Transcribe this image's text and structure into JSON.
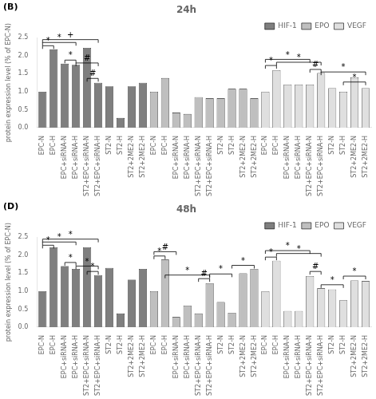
{
  "chart_data": [
    {
      "type": "bar",
      "title": "24h",
      "panel_label": "(B)",
      "y_label": "protein expression level (% of EPC-N)",
      "categories": [
        "EPC-N",
        "EPC-H",
        "EPC+siRNA-N",
        "EPC+siRNA-H",
        "ST2+EPC+siRNA-N",
        "ST2+EPC+siRNA-H",
        "ST2-N",
        "ST2-H",
        "ST2+2ME2-N",
        "ST2+2ME2-H",
        "EPC-N",
        "EPC-H",
        "EPC+siRNA-N",
        "EPC+siRNA-H",
        "ST2+EPC+siRNA-N",
        "ST2+EPC+siRNA-H",
        "ST2-N",
        "ST2-H",
        "ST2+2ME2-N",
        "ST2+2ME2-H",
        "EPC-N",
        "EPC-H",
        "EPC+siRNA-N",
        "EPC+siRNA-H",
        "ST2+EPC+siRNA-N",
        "ST2+EPC+siRNA-H",
        "ST2-N",
        "ST2-H",
        "ST2+2ME2-N",
        "ST2+2ME2-H"
      ],
      "series": [
        {
          "name": "HIF-1",
          "color": "#7f7f7f",
          "values": [
            1.0,
            2.18,
            1.78,
            1.75,
            2.22,
            1.25,
            1.15,
            0.27,
            1.15,
            1.25,
            null,
            null,
            null,
            null,
            null,
            null,
            null,
            null,
            null,
            null,
            null,
            null,
            null,
            null,
            null,
            null,
            null,
            null,
            null,
            null
          ]
        },
        {
          "name": "EPO",
          "color": "#bfbfbf",
          "values": [
            null,
            null,
            null,
            null,
            null,
            null,
            null,
            null,
            null,
            null,
            1.0,
            1.38,
            0.42,
            0.38,
            0.85,
            0.82,
            0.82,
            1.08,
            1.08,
            0.82,
            null,
            null,
            null,
            null,
            null,
            null,
            null,
            null,
            null,
            null
          ]
        },
        {
          "name": "VEGF",
          "color": "#dfdfdf",
          "values": [
            null,
            null,
            null,
            null,
            null,
            null,
            null,
            null,
            null,
            null,
            null,
            null,
            null,
            null,
            null,
            null,
            null,
            null,
            null,
            null,
            1.0,
            1.6,
            1.2,
            1.2,
            1.2,
            1.52,
            1.1,
            1.0,
            1.4,
            1.1
          ]
        }
      ],
      "ylim": [
        0.0,
        2.5
      ],
      "yticks": [
        {
          "value": 0.0,
          "label": "0.0"
        },
        0.5,
        {
          "value": 1.0,
          "label": "1.0"
        },
        1.5,
        {
          "value": 2.0,
          "label": "2.0"
        },
        2.5
      ],
      "grid": false,
      "legend": "upper right",
      "annotations": [
        {
          "series": "HIF-1",
          "from": "EPC-N",
          "to": "EPC-H",
          "y": 2.28,
          "text": "*"
        },
        {
          "series": "HIF-1",
          "from": "EPC-N",
          "to": "EPC+siRNA-H",
          "y": 2.37,
          "text": "*"
        },
        {
          "series": "HIF-1",
          "from": "EPC-N",
          "to": "ST2+EPC+siRNA-H",
          "y": 2.45,
          "text": "+"
        },
        {
          "series": "HIF-1",
          "from": "EPC+siRNA-N",
          "to": "EPC+siRNA-H",
          "y": 1.88,
          "text": "*"
        },
        {
          "series": "HIF-1",
          "from": "EPC+siRNA-H",
          "to": "ST2+EPC+siRNA-H",
          "y": 1.8,
          "text": "#"
        },
        {
          "series": "HIF-1",
          "from": "ST2+EPC+siRNA-N",
          "to": "ST2+EPC+siRNA-H",
          "y": 1.37,
          "text": "#"
        },
        {
          "series": "VEGF",
          "from": "EPC-N",
          "to": "EPC-H",
          "y": 1.73,
          "text": "*"
        },
        {
          "series": "VEGF",
          "from": "EPC-H",
          "to": "ST2+EPC+siRNA-H",
          "y": 1.82,
          "text": "*"
        },
        {
          "series": "VEGF",
          "from": "EPC-N",
          "to": "ST2+EPC+siRNA-N",
          "y": 1.9,
          "text": "*"
        },
        {
          "series": "VEGF",
          "from": "ST2+EPC+siRNA-N",
          "to": "ST2+EPC+siRNA-H",
          "y": 1.62,
          "text": "#"
        },
        {
          "series": "VEGF",
          "from": "ST2+EPC+siRNA-H",
          "to": "ST2+2ME2-H",
          "y": 1.55,
          "text": "*"
        },
        {
          "series": "VEGF",
          "from": "ST2-H",
          "to": "ST2+2ME2-H",
          "y": 1.27,
          "text": "*"
        }
      ]
    },
    {
      "type": "bar",
      "title": "48h",
      "panel_label": "(D)",
      "y_label": "protein expression level (% of EPC-N)",
      "categories": [
        "EPC-N",
        "EPC-H",
        "EPC+siRNA-N",
        "EPC+siRNA-H",
        "ST2+EPC+siRNA-N",
        "ST2+EPC+siRNA-H",
        "ST2-N",
        "ST2-H",
        "ST2+2ME2-N",
        "ST2+2ME2-H",
        "EPC-N",
        "EPC-H",
        "EPC+siRNA-N",
        "EPC+siRNA-H",
        "ST2+EPC+siRNA-N",
        "ST2+EPC+siRNA-H",
        "ST2-N",
        "ST2-H",
        "ST2+2ME2-N",
        "ST2+2ME2-H",
        "EPC-N",
        "EPC-H",
        "EPC+siRNA-N",
        "EPC+siRNA-H",
        "ST2+EPC+siRNA-N",
        "ST2+EPC+siRNA-H",
        "ST2-N",
        "ST2-H",
        "ST2+2ME2-N",
        "ST2+2ME2-H"
      ],
      "series": [
        {
          "name": "HIF-1",
          "color": "#7f7f7f",
          "values": [
            1.0,
            2.22,
            1.7,
            1.62,
            2.22,
            1.45,
            1.65,
            0.38,
            1.32,
            1.62,
            null,
            null,
            null,
            null,
            null,
            null,
            null,
            null,
            null,
            null,
            null,
            null,
            null,
            null,
            null,
            null,
            null,
            null,
            null,
            null
          ]
        },
        {
          "name": "EPO",
          "color": "#bfbfbf",
          "values": [
            null,
            null,
            null,
            null,
            null,
            null,
            null,
            null,
            null,
            null,
            1.0,
            1.88,
            0.28,
            0.6,
            0.38,
            1.22,
            0.7,
            0.4,
            1.5,
            1.62,
            null,
            null,
            null,
            null,
            null,
            null,
            null,
            null,
            null,
            null
          ]
        },
        {
          "name": "VEGF",
          "color": "#dfdfdf",
          "values": [
            null,
            null,
            null,
            null,
            null,
            null,
            null,
            null,
            null,
            null,
            null,
            null,
            null,
            null,
            null,
            null,
            null,
            null,
            null,
            null,
            1.0,
            1.85,
            0.45,
            0.45,
            1.42,
            1.08,
            1.05,
            0.75,
            1.3,
            1.28
          ]
        }
      ],
      "ylim": [
        0.0,
        2.5
      ],
      "yticks": [
        {
          "value": 0.0,
          "label": "0.0"
        },
        0.5,
        {
          "value": 1.0,
          "label": "1.0"
        },
        1.5,
        {
          "value": 2.0,
          "label": "2.0"
        },
        2.5
      ],
      "grid": false,
      "legend": "upper right",
      "annotations": [
        {
          "series": "HIF-1",
          "from": "EPC-N",
          "to": "EPC-H",
          "y": 2.28,
          "text": "*"
        },
        {
          "series": "HIF-1",
          "from": "EPC-N",
          "to": "EPC+siRNA-H",
          "y": 2.37,
          "text": "*"
        },
        {
          "series": "HIF-1",
          "from": "EPC-N",
          "to": "ST2+EPC+siRNA-H",
          "y": 2.45,
          "text": "*"
        },
        {
          "series": "HIF-1",
          "from": "EPC+siRNA-N",
          "to": "EPC+siRNA-H",
          "y": 1.8,
          "text": "*"
        },
        {
          "series": "HIF-1",
          "from": "EPC+siRNA-H",
          "to": "ST2+EPC+siRNA-H",
          "y": 1.7,
          "text": "*"
        },
        {
          "series": "HIF-1",
          "from": "ST2+EPC+siRNA-N",
          "to": "ST2+EPC+siRNA-H",
          "y": 1.55,
          "text": "*"
        },
        {
          "series": "EPO",
          "from": "EPC-N",
          "to": "EPC-H",
          "y": 1.98,
          "text": "*"
        },
        {
          "series": "EPO",
          "from": "EPC-N",
          "to": "EPC+siRNA-N",
          "y": 2.1,
          "text": "#"
        },
        {
          "series": "EPO",
          "from": "EPC-H",
          "to": "ST2+EPC+siRNA-H",
          "y": 1.45,
          "text": "*"
        },
        {
          "series": "EPO",
          "from": "ST2+EPC+siRNA-N",
          "to": "ST2+EPC+siRNA-H",
          "y": 1.35,
          "text": "#"
        },
        {
          "series": "EPO",
          "from": "ST2+EPC+siRNA-H",
          "to": "ST2-H",
          "y": 1.48,
          "text": "*"
        },
        {
          "series": "EPO",
          "from": "ST2-H",
          "to": "ST2+2ME2-H",
          "y": 1.72,
          "text": "*"
        },
        {
          "series": "VEGF",
          "from": "EPC-N",
          "to": "EPC-H",
          "y": 1.95,
          "text": "*"
        },
        {
          "series": "VEGF",
          "from": "EPC-H",
          "to": "ST2+EPC+siRNA-H",
          "y": 2.05,
          "text": "*"
        },
        {
          "series": "VEGF",
          "from": "EPC-N",
          "to": "ST2+EPC+siRNA-N",
          "y": 2.13,
          "text": "*"
        },
        {
          "series": "VEGF",
          "from": "ST2+EPC+siRNA-N",
          "to": "ST2+EPC+siRNA-H",
          "y": 1.55,
          "text": "#"
        },
        {
          "series": "VEGF",
          "from": "ST2+EPC+siRNA-H",
          "to": "ST2-H",
          "y": 1.18,
          "text": "*"
        },
        {
          "series": "VEGF",
          "from": "ST2-H",
          "to": "ST2+2ME2-H",
          "y": 1.42,
          "text": "*"
        }
      ]
    }
  ]
}
